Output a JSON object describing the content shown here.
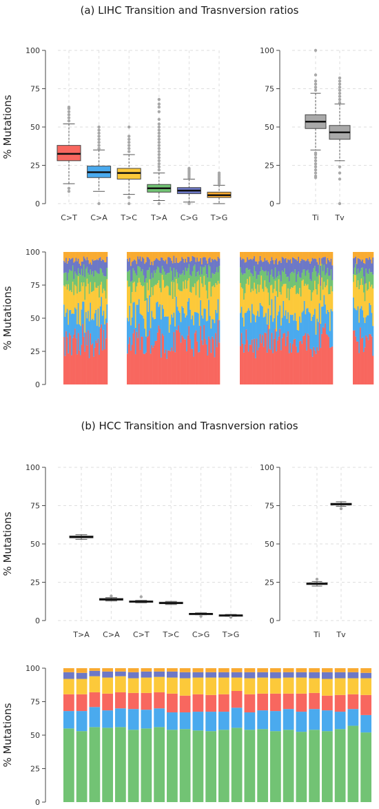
{
  "titles": {
    "a": "(a) LIHC Transition and Trasnversion ratios",
    "b": "(b) HCC Transition and Trasnversion ratios"
  },
  "colors": {
    "C>T": "#f8675f",
    "C>A": "#4aaaee",
    "T>C": "#fcc93a",
    "T>A": "#72c374",
    "C>G": "#6d78c6",
    "T>G": "#f9ab31",
    "Ti": "#a9a9a9",
    "Tv": "#a9a9a9"
  },
  "chart_data": [
    {
      "id": "lihc-box",
      "type": "box",
      "ylabel": "% Mutations",
      "ylim": [
        0,
        100
      ],
      "yticks": [
        "0",
        "25",
        "50",
        "75",
        "100"
      ],
      "grid": true,
      "categories": [
        "C>T",
        "C>A",
        "T>C",
        "T>A",
        "C>G",
        "T>G"
      ],
      "boxes": [
        {
          "q1": 28,
          "median": 32.5,
          "q3": 38,
          "wlo": 13,
          "whi": 52,
          "outliers": [
            8,
            10,
            54,
            56,
            58,
            60,
            62,
            63
          ]
        },
        {
          "q1": 17,
          "median": 20.5,
          "q3": 24.5,
          "wlo": 8,
          "whi": 35,
          "outliers": [
            0,
            36,
            38,
            40,
            42,
            44,
            46,
            48,
            50
          ]
        },
        {
          "q1": 16,
          "median": 20,
          "q3": 23,
          "wlo": 6,
          "whi": 32,
          "outliers": [
            0,
            4,
            34,
            36,
            38,
            40,
            42,
            44,
            50
          ]
        },
        {
          "q1": 7.5,
          "median": 10,
          "q3": 12.5,
          "wlo": 2,
          "whi": 20,
          "outliers": [
            0,
            22,
            24,
            26,
            28,
            30,
            32,
            34,
            36,
            38,
            40,
            42,
            44,
            46,
            48,
            50,
            52,
            55,
            60,
            63,
            65,
            68
          ]
        },
        {
          "q1": 6.5,
          "median": 8.5,
          "q3": 10.5,
          "wlo": 1,
          "whi": 16,
          "outliers": [
            0,
            17,
            18,
            19,
            20,
            21,
            22,
            23
          ]
        },
        {
          "q1": 4,
          "median": 5.5,
          "q3": 7.5,
          "wlo": 0,
          "whi": 12,
          "outliers": [
            13,
            14,
            15,
            16,
            17,
            18,
            19,
            20
          ]
        }
      ]
    },
    {
      "id": "lihc-titv",
      "type": "box",
      "ylim": [
        0,
        100
      ],
      "yticks": [
        "0",
        "25",
        "50",
        "75",
        "100"
      ],
      "grid": true,
      "categories": [
        "Ti",
        "Tv"
      ],
      "boxes": [
        {
          "q1": 49,
          "median": 53.5,
          "q3": 58,
          "wlo": 35,
          "whi": 72,
          "outliers": [
            17,
            18,
            20,
            22,
            24,
            26,
            28,
            30,
            32,
            33,
            74,
            76,
            78,
            80,
            84,
            100
          ]
        },
        {
          "q1": 42,
          "median": 46.5,
          "q3": 51,
          "wlo": 28,
          "whi": 65,
          "outliers": [
            0,
            16,
            20,
            24,
            66,
            68,
            70,
            72,
            74,
            76,
            78,
            80,
            82
          ]
        }
      ]
    },
    {
      "id": "lihc-stacked",
      "type": "stacked-bar",
      "ylabel": "% Mutations",
      "ylim": [
        0,
        100
      ],
      "yticks": [
        "0",
        "25",
        "50",
        "75",
        "100"
      ],
      "series_order": [
        "C>T",
        "C>A",
        "T>C",
        "T>A",
        "C>G",
        "T>G"
      ],
      "group_sample_counts": [
        40,
        80,
        80,
        18
      ],
      "mean_percent": [
        33,
        21,
        20,
        11,
        9,
        6
      ]
    },
    {
      "id": "hcc-box",
      "type": "box",
      "ylabel": "% Mutations",
      "ylim": [
        0,
        100
      ],
      "yticks": [
        "0",
        "25",
        "50",
        "75",
        "100"
      ],
      "grid": true,
      "categories": [
        "T>A",
        "C>A",
        "C>T",
        "T>C",
        "C>G",
        "T>G"
      ],
      "boxes": [
        {
          "q1": 54,
          "median": 54.5,
          "q3": 55.2,
          "wlo": 53,
          "whi": 56,
          "outliers": []
        },
        {
          "q1": 13.3,
          "median": 13.8,
          "q3": 14.4,
          "wlo": 12.8,
          "whi": 15,
          "outliers": [
            16
          ]
        },
        {
          "q1": 12,
          "median": 12.4,
          "q3": 12.8,
          "wlo": 11.6,
          "whi": 13.2,
          "outliers": [
            15.5
          ]
        },
        {
          "q1": 11,
          "median": 11.4,
          "q3": 12,
          "wlo": 10.5,
          "whi": 12.5,
          "outliers": []
        },
        {
          "q1": 4.1,
          "median": 4.4,
          "q3": 4.7,
          "wlo": 3.8,
          "whi": 5,
          "outliers": [
            2.8
          ]
        },
        {
          "q1": 3.1,
          "median": 3.4,
          "q3": 3.7,
          "wlo": 2.8,
          "whi": 4,
          "outliers": [
            2.2
          ]
        }
      ]
    },
    {
      "id": "hcc-titv",
      "type": "box",
      "ylim": [
        0,
        100
      ],
      "yticks": [
        "0",
        "25",
        "50",
        "75",
        "100"
      ],
      "grid": true,
      "categories": [
        "Ti",
        "Tv"
      ],
      "boxes": [
        {
          "q1": 23.5,
          "median": 24,
          "q3": 24.6,
          "wlo": 22.5,
          "whi": 25.5,
          "outliers": [
            27
          ]
        },
        {
          "q1": 75.4,
          "median": 76,
          "q3": 76.5,
          "wlo": 74.5,
          "whi": 77.5,
          "outliers": [
            73
          ]
        }
      ]
    },
    {
      "id": "hcc-stacked",
      "type": "stacked-bar",
      "ylabel": "% Mutations",
      "ylim": [
        0,
        100
      ],
      "yticks": [
        "0",
        "25",
        "50",
        "75",
        "100"
      ],
      "series_order": [
        "T>A",
        "C>A",
        "C>T",
        "T>C",
        "C>G",
        "T>G"
      ],
      "samples": [
        [
          55,
          13,
          12.5,
          11.5,
          5,
          3
        ],
        [
          53,
          15,
          12.5,
          11.5,
          4.5,
          3.5
        ],
        [
          56,
          15,
          11,
          12,
          4,
          2
        ],
        [
          55.5,
          13,
          12.5,
          12,
          4.5,
          2.5
        ],
        [
          56,
          14,
          12,
          12,
          3.5,
          2.5
        ],
        [
          54,
          15.5,
          12,
          11,
          4.5,
          3
        ],
        [
          55,
          14,
          12.5,
          11.5,
          4.5,
          2.5
        ],
        [
          56,
          14,
          12,
          11.5,
          4,
          2.5
        ],
        [
          54,
          13,
          14,
          12,
          4.5,
          2.5
        ],
        [
          54.5,
          12.5,
          12.5,
          13,
          4.5,
          3
        ],
        [
          53.5,
          14,
          13,
          12.5,
          4,
          3
        ],
        [
          53,
          14.5,
          12.5,
          13,
          4,
          3
        ],
        [
          54,
          13.5,
          13,
          12.5,
          4,
          3
        ],
        [
          55.5,
          15,
          12.5,
          10,
          4,
          3
        ],
        [
          54,
          13,
          13.5,
          12,
          4.5,
          3
        ],
        [
          54.5,
          14,
          12.5,
          12,
          4,
          3
        ],
        [
          53,
          15,
          13,
          11.5,
          4.5,
          3
        ],
        [
          54,
          15.5,
          11.5,
          12,
          4,
          3
        ],
        [
          52.5,
          15,
          13.5,
          12,
          4,
          3
        ],
        [
          54,
          15.5,
          12,
          11,
          4.5,
          3
        ],
        [
          53,
          15.5,
          11,
          12.5,
          5,
          3
        ],
        [
          54.5,
          13,
          12.5,
          12.5,
          4.5,
          3
        ],
        [
          57,
          12.5,
          11,
          12,
          4.5,
          3
        ],
        [
          52,
          13,
          15,
          12.5,
          4,
          3.5
        ]
      ]
    }
  ]
}
